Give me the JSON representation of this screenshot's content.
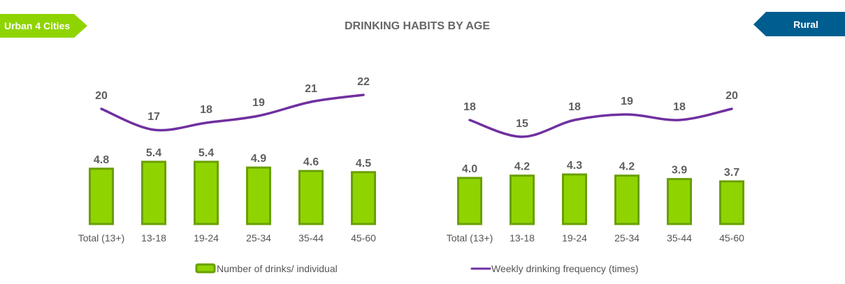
{
  "header": {
    "left_badge": "Urban 4 Cities",
    "right_badge": "Rural",
    "title": "DRINKING HABITS BY AGE"
  },
  "colors": {
    "bar_fill": "#8fd400",
    "bar_stroke": "#6a9f00",
    "line": "#7030a0",
    "urban_badge": "#8fd400",
    "rural_badge": "#005d8f"
  },
  "chart_data": [
    {
      "type": "bar",
      "name": "Urban 4 Cities",
      "categories": [
        "Total (13+)",
        "13-18",
        "19-24",
        "25-34",
        "35-44",
        "45-60"
      ],
      "series": [
        {
          "name": "Number of drinks/ individual",
          "type": "bar",
          "values": [
            4.8,
            5.4,
            5.4,
            4.9,
            4.6,
            4.5
          ]
        },
        {
          "name": "Weekly drinking frequency (times)",
          "type": "line",
          "values": [
            20,
            17,
            18,
            19,
            21,
            22
          ]
        }
      ]
    },
    {
      "type": "bar",
      "name": "Rural",
      "categories": [
        "Total (13+)",
        "13-18",
        "19-24",
        "25-34",
        "35-44",
        "45-60"
      ],
      "series": [
        {
          "name": "Number of drinks/ individual",
          "type": "bar",
          "values": [
            4.0,
            4.2,
            4.3,
            4.2,
            3.9,
            3.7
          ]
        },
        {
          "name": "Weekly drinking frequency (times)",
          "type": "line",
          "values": [
            18,
            15,
            18,
            19,
            18,
            20
          ]
        }
      ]
    }
  ],
  "legend": [
    {
      "label": "Number of drinks/ individual"
    },
    {
      "label": "Weekly drinking frequency (times)"
    }
  ]
}
